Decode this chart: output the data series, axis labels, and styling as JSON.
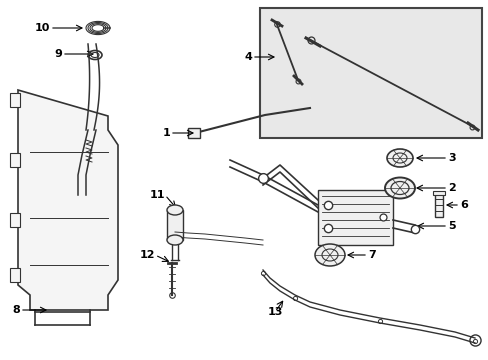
{
  "bg_color": "#ffffff",
  "line_color": "#333333",
  "text_color": "#000000",
  "figsize": [
    4.89,
    3.6
  ],
  "dpi": 100
}
